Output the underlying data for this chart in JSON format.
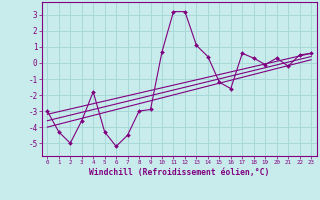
{
  "xlabel": "Windchill (Refroidissement éolien,°C)",
  "background_color": "#c8ecec",
  "grid_color": "#a8d8d8",
  "line_color": "#800080",
  "x_data": [
    0,
    1,
    2,
    3,
    4,
    5,
    6,
    7,
    8,
    9,
    10,
    11,
    12,
    13,
    14,
    15,
    16,
    17,
    18,
    19,
    20,
    21,
    22,
    23
  ],
  "y_data": [
    -3.0,
    -4.3,
    -5.0,
    -3.6,
    -1.8,
    -4.3,
    -5.2,
    -4.5,
    -3.0,
    -2.9,
    0.7,
    3.2,
    3.2,
    1.1,
    0.4,
    -1.2,
    -1.6,
    0.6,
    0.3,
    -0.1,
    0.3,
    -0.2,
    0.5,
    0.6
  ],
  "reg_lines": [
    {
      "x": [
        0,
        23
      ],
      "y": [
        -4.0,
        0.2
      ]
    },
    {
      "x": [
        0,
        23
      ],
      "y": [
        -3.6,
        0.4
      ]
    },
    {
      "x": [
        0,
        23
      ],
      "y": [
        -3.2,
        0.6
      ]
    }
  ],
  "ylim": [
    -5.8,
    3.8
  ],
  "xlim": [
    -0.5,
    23.5
  ],
  "yticks": [
    -5,
    -4,
    -3,
    -2,
    -1,
    0,
    1,
    2,
    3
  ],
  "xticks": [
    0,
    1,
    2,
    3,
    4,
    5,
    6,
    7,
    8,
    9,
    10,
    11,
    12,
    13,
    14,
    15,
    16,
    17,
    18,
    19,
    20,
    21,
    22,
    23
  ]
}
